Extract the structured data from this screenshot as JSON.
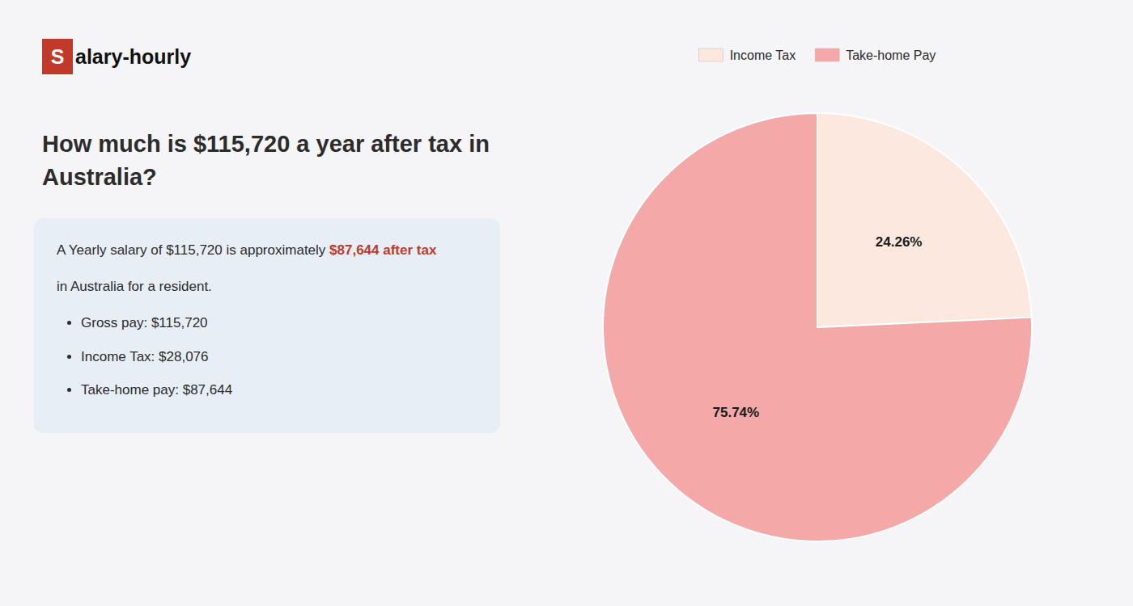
{
  "chart_data": {
    "type": "pie",
    "title": "How much is $115,720 a year after tax in Australia?",
    "annotations": [
      {
        "text": "S",
        "color": "#c0392b"
      },
      {
        "text": "alary-hourly"
      },
      {
        "text": "A Yearly salary of $115,720 is approximately "
      },
      {
        "text": "$87,644 after tax",
        "color": "#c0392b"
      },
      {
        "text": "in Australia for a resident."
      },
      {
        "text": "Gross pay: $115,720"
      },
      {
        "text": "Income Tax: $28,076"
      },
      {
        "text": "Take-home pay: $87,644"
      }
    ],
    "categories": [
      "Income Tax",
      "Take-home Pay"
    ],
    "values": [
      24.26,
      75.74
    ],
    "value_labels": [
      "24.26%",
      "75.74%"
    ],
    "colors": [
      "#fce8df",
      "#f5a8a8"
    ],
    "data_labels": true,
    "legend": "top"
  }
}
